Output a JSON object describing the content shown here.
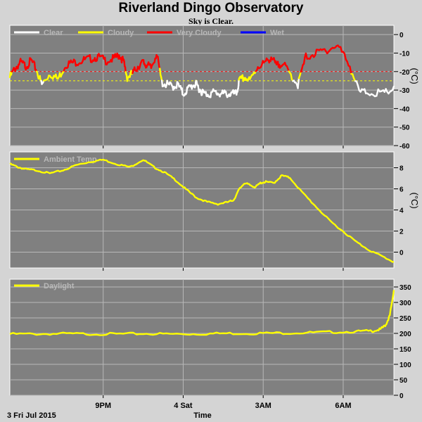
{
  "header": {
    "title": "Riverland Dingo Observatory",
    "subtitle": "Sky is Clear."
  },
  "x_axis": {
    "label": "Time",
    "date_label": "3 Fri Jul 2015",
    "ticks": [
      {
        "label": "9PM",
        "hour": 3.5
      },
      {
        "label": "4 Sat",
        "hour": 6.5
      },
      {
        "label": "3AM",
        "hour": 9.5
      },
      {
        "label": "6AM",
        "hour": 12.5
      }
    ],
    "range_hours": [
      0,
      14.4
    ]
  },
  "chart_data": [
    {
      "type": "line",
      "panel": "sky",
      "unit_label": "(°C)",
      "ylim": [
        -60,
        5
      ],
      "yticks": [
        0,
        -10,
        -20,
        -30,
        -40,
        -50,
        -60
      ],
      "reference_lines": [
        {
          "value": -20,
          "color": "#ff0000"
        },
        {
          "value": -25,
          "color": "#ffff00"
        }
      ],
      "legend": [
        {
          "name": "Clear",
          "color": "#ffffff"
        },
        {
          "name": "Cloudy",
          "color": "#ffff00"
        },
        {
          "name": "Very Cloudy",
          "color": "#ff0000"
        },
        {
          "name": "Wet",
          "color": "#0000ff"
        }
      ],
      "series": [
        {
          "x": [
            0.0,
            0.2,
            0.4,
            0.6,
            0.8,
            1.0,
            1.2,
            1.5,
            1.8,
            2.1,
            2.4,
            2.7,
            3.0,
            3.3,
            3.6,
            3.9,
            4.1,
            4.25,
            4.4,
            4.6,
            4.8,
            5.0,
            5.1,
            5.3,
            5.5,
            5.7,
            5.9,
            6.1,
            6.3,
            6.5,
            6.7,
            6.9,
            7.0,
            7.15,
            7.3,
            7.5,
            7.7,
            7.9,
            8.1,
            8.3,
            8.5,
            8.6,
            8.8,
            9.0,
            9.3,
            9.6,
            9.8,
            10.0,
            10.2,
            10.5,
            10.8,
            11.1,
            11.5,
            11.9,
            12.3,
            12.7,
            13.1,
            13.5,
            14.0,
            14.4
          ],
          "y": [
            -22,
            -17,
            -14,
            -16,
            -13,
            -18,
            -26,
            -20,
            -23,
            -15,
            -14,
            -13,
            -12,
            -11,
            -13,
            -12,
            -10,
            -13,
            -22,
            -20,
            -16,
            -14,
            -15,
            -17,
            -9,
            -25,
            -26,
            -27,
            -26,
            -31,
            -28,
            -26,
            -26,
            -29,
            -31,
            -31,
            -30,
            -31,
            -31,
            -31,
            -31,
            -24,
            -22,
            -24,
            -16,
            -14,
            -11,
            -16,
            -14,
            -20,
            -26,
            -11,
            -9,
            -7,
            -5,
            -14,
            -30,
            -30,
            -31,
            -28
          ]
        }
      ]
    },
    {
      "type": "line",
      "panel": "ambient",
      "unit_label": "(°C)",
      "ylim": [
        -1.5,
        9.5
      ],
      "yticks": [
        8,
        6,
        4,
        2,
        0
      ],
      "legend": [
        {
          "name": "Ambient Temp",
          "color": "#ffff00"
        }
      ],
      "series": [
        {
          "name": "Ambient Temp",
          "color": "#ffff00",
          "x": [
            0.0,
            0.3,
            0.6,
            1.0,
            1.5,
            2.0,
            2.5,
            3.0,
            3.5,
            4.0,
            4.5,
            5.0,
            5.4,
            5.8,
            6.2,
            6.6,
            7.0,
            7.4,
            7.8,
            8.2,
            8.4,
            8.6,
            8.8,
            9.0,
            9.2,
            9.4,
            9.6,
            9.9,
            10.2,
            10.5,
            11.0,
            11.5,
            12.0,
            12.5,
            13.0,
            13.5,
            14.0,
            14.4
          ],
          "y": [
            8.4,
            8.1,
            7.9,
            7.8,
            7.5,
            7.8,
            8.3,
            8.6,
            8.8,
            8.4,
            8.1,
            8.8,
            8.1,
            7.6,
            6.9,
            6.0,
            5.2,
            4.8,
            4.6,
            4.8,
            5.0,
            6.0,
            6.6,
            6.4,
            6.2,
            6.6,
            6.7,
            6.6,
            7.3,
            7.1,
            5.6,
            4.3,
            3.0,
            2.0,
            1.0,
            0.2,
            -0.4,
            -0.9
          ]
        }
      ]
    },
    {
      "type": "line",
      "panel": "daylight",
      "ylim": [
        0,
        375
      ],
      "yticks": [
        350,
        300,
        250,
        200,
        150,
        100,
        50,
        0
      ],
      "legend": [
        {
          "name": "Daylight",
          "color": "#ffff00"
        }
      ],
      "series": [
        {
          "name": "Daylight",
          "color": "#ffff00",
          "x": [
            0.0,
            1.0,
            2.0,
            3.0,
            4.0,
            5.0,
            6.0,
            7.0,
            8.0,
            9.0,
            10.0,
            11.0,
            12.0,
            13.0,
            13.6,
            13.9,
            14.1,
            14.25,
            14.4
          ],
          "y": [
            200,
            200,
            201,
            200,
            200,
            201,
            200,
            200,
            202,
            202,
            203,
            204,
            206,
            208,
            210,
            215,
            230,
            260,
            340
          ]
        }
      ]
    }
  ]
}
